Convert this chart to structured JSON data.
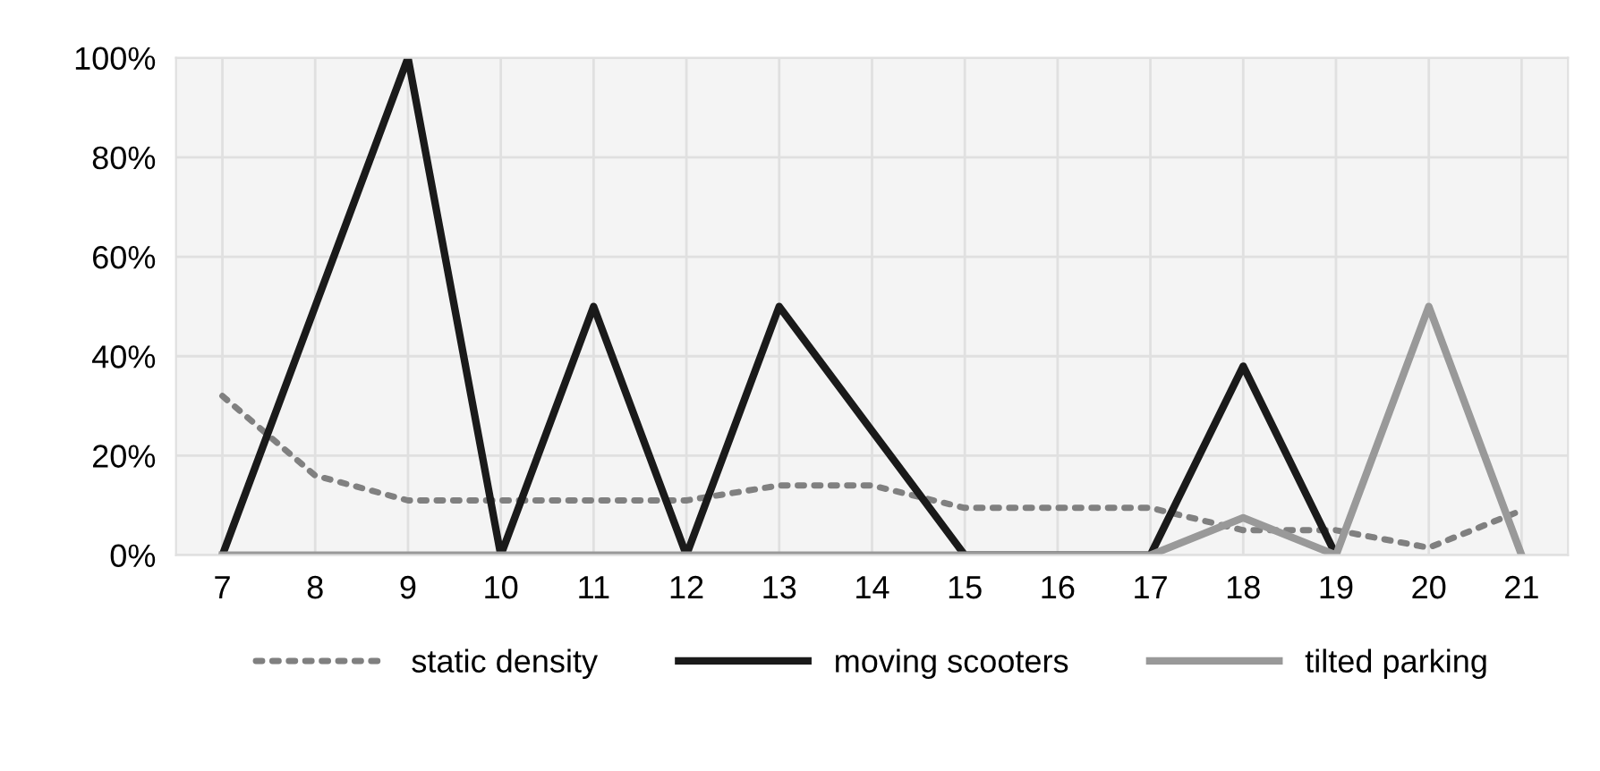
{
  "chart_data": {
    "type": "line",
    "categories": [
      "7",
      "8",
      "9",
      "10",
      "11",
      "12",
      "13",
      "14",
      "15",
      "16",
      "17",
      "18",
      "19",
      "20",
      "21"
    ],
    "series": [
      {
        "name": "static density",
        "color": "#808080",
        "line_style": "dotted",
        "values": [
          32,
          16,
          11,
          11,
          11,
          11,
          14,
          14,
          9.5,
          9.5,
          9.5,
          5,
          5,
          1.5,
          9
        ]
      },
      {
        "name": "moving scooters",
        "color": "#1a1a1a",
        "line_style": "solid",
        "values": [
          0,
          50,
          100,
          0,
          50,
          0,
          50,
          25,
          0,
          0,
          0,
          38,
          0,
          null,
          null
        ]
      },
      {
        "name": "tilted parking",
        "color": "#999999",
        "line_style": "solid",
        "values": [
          0,
          0,
          0,
          0,
          0,
          0,
          0,
          0,
          0,
          0,
          0,
          7.5,
          0,
          50,
          0
        ]
      }
    ],
    "ylim": [
      0,
      100
    ],
    "yticks": [
      {
        "value": 0,
        "label": "0%"
      },
      {
        "value": 20,
        "label": "20%"
      },
      {
        "value": 40,
        "label": "40%"
      },
      {
        "value": 60,
        "label": "60%"
      },
      {
        "value": 80,
        "label": "80%"
      },
      {
        "value": 100,
        "label": "100%"
      }
    ],
    "grid": true,
    "legend": "bottom",
    "marker": "none"
  }
}
